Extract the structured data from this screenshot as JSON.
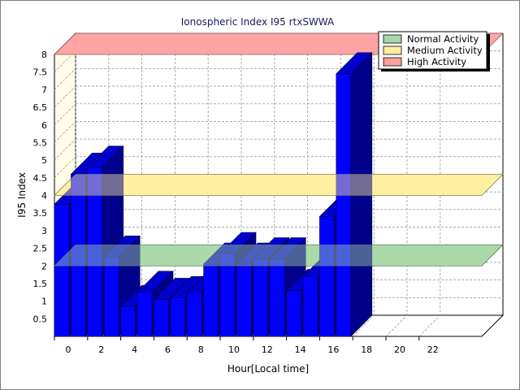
{
  "chart_data": {
    "type": "bar",
    "title": "Ionospheric Index I95 rtxSWWA",
    "xlabel": "Hour[Local time]",
    "ylabel": "I95 Index",
    "x": [
      0,
      1,
      2,
      3,
      4,
      5,
      6,
      7,
      8,
      9,
      10,
      11,
      12,
      13,
      14,
      15,
      16,
      17
    ],
    "values": [
      3.75,
      4.6,
      4.8,
      2.25,
      0.85,
      1.25,
      1.05,
      1.1,
      1.25,
      2.05,
      2.35,
      2.05,
      2.2,
      2.2,
      1.3,
      1.7,
      3.4,
      7.45
    ],
    "xlim": [
      0,
      26
    ],
    "ylim": [
      0,
      8
    ],
    "x_ticks": [
      "0",
      "2",
      "4",
      "6",
      "8",
      "10",
      "12",
      "14",
      "16",
      "18",
      "20",
      "22"
    ],
    "y_ticks": [
      "0.5",
      "1",
      "1.5",
      "2",
      "2.5",
      "3",
      "3.5",
      "4",
      "4.5",
      "5",
      "5.5",
      "6",
      "6.5",
      "7",
      "7.5",
      "8"
    ],
    "grid": true,
    "legend_position": "top-right",
    "bar_color": "#0000ff",
    "bands": [
      {
        "name": "Normal Activity",
        "level": 2,
        "color": "#a8d8a8"
      },
      {
        "name": "Medium Activity",
        "level": 4,
        "color": "#fff0a0"
      },
      {
        "name": "High Activity",
        "level": 8,
        "color": "#ffa0a0"
      }
    ]
  }
}
